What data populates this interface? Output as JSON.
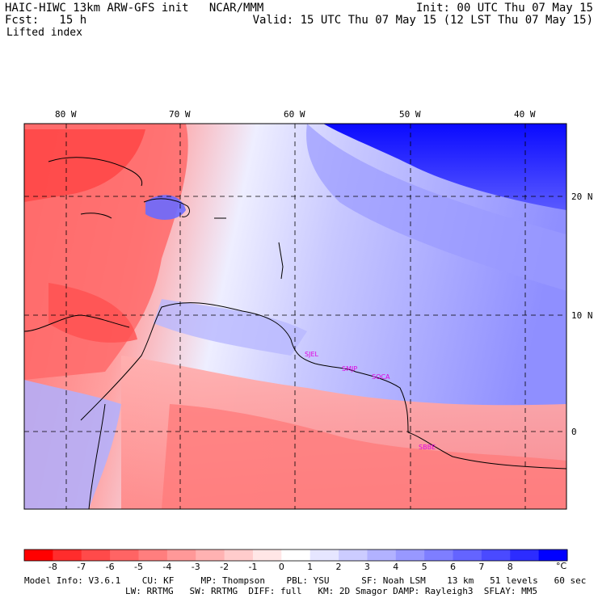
{
  "header": {
    "left_line1": "HAIC-HIWC 13km ARW-GFS init   NCAR/MMM",
    "left_line2": "Fcst:   15 h",
    "field_name": "Lifted index",
    "right_line1": "Init: 00 UTC Thu 07 May 15",
    "right_line2": "Valid: 15 UTC Thu 07 May 15 (12 LST Thu 07 May 15)"
  },
  "map": {
    "longitude_labels": [
      "80 W",
      "70 W",
      "60 W",
      "50 W",
      "40 W"
    ],
    "latitude_labels": [
      "20 N",
      "10 N",
      "0"
    ],
    "sites": [
      "SJEL",
      "SMJP",
      "SOCA",
      "SBBE"
    ]
  },
  "colorbar": {
    "ticks": [
      "-8",
      "-7",
      "-6",
      "-5",
      "-4",
      "-3",
      "-2",
      "-1",
      "0",
      "1",
      "2",
      "3",
      "4",
      "5",
      "6",
      "7",
      "8"
    ],
    "unit": "°C",
    "colors": [
      "#ff0000",
      "#ff2c2c",
      "#ff4a4a",
      "#ff6464",
      "#ff7e7e",
      "#ff9898",
      "#ffb2b2",
      "#ffcccc",
      "#ffe6e6",
      "#ffffff",
      "#e6e6ff",
      "#ccccff",
      "#b2b2ff",
      "#9898ff",
      "#7e7eff",
      "#6464ff",
      "#4a4aff",
      "#2c2cff",
      "#0000ff"
    ]
  },
  "footer": {
    "line1": "Model Info: V3.6.1    CU: KF     MP: Thompson    PBL: YSU      SF: Noah LSM    13 km   51 levels   60 sec",
    "line2": "LW: RRTMG   SW: RRTMG  DIFF: full   KM: 2D Smagor DAMP: Rayleigh3  SFLAY: MM5"
  }
}
